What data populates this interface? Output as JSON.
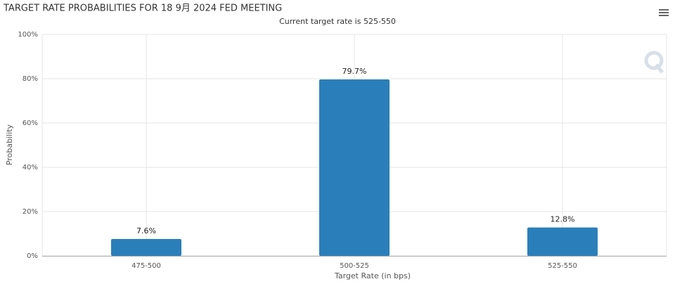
{
  "chart_data": {
    "type": "bar",
    "title": "TARGET RATE PROBABILITIES FOR 18 9月 2024 FED MEETING",
    "subtitle": "Current target rate is 525-550",
    "x_label": "Target Rate (in bps)",
    "y_label": "Probability",
    "categories": [
      "475-500",
      "500-525",
      "525-550"
    ],
    "values": [
      7.6,
      79.7,
      12.8
    ],
    "value_labels": [
      "7.6%",
      "79.7%",
      "12.8%"
    ],
    "color": "#2a7fba",
    "ylim": [
      0,
      100
    ],
    "yticks": [
      {
        "value": 0,
        "label": "0%"
      },
      {
        "value": 20,
        "label": "20%"
      },
      {
        "value": 40,
        "label": "40%"
      },
      {
        "value": 60,
        "label": "60%"
      },
      {
        "value": 80,
        "label": "80%"
      },
      {
        "value": 100,
        "label": "100%"
      }
    ],
    "grid": true
  }
}
